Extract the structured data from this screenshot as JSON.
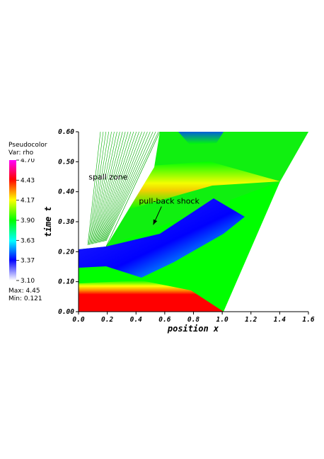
{
  "legend": {
    "title1": "Pseudocolor",
    "title2": "Var: rho",
    "ticks": [
      "4.70",
      "4.43",
      "4.17",
      "3.90",
      "3.63",
      "3.37",
      "3.10"
    ],
    "max_label": "Max:  4.45",
    "min_label": "Min:  0.121",
    "colors": [
      "#ff00ff",
      "#ff0000",
      "#ffff00",
      "#00ff00",
      "#00ffff",
      "#0000ff",
      "#ffffff"
    ]
  },
  "chart_data": {
    "type": "heatmap",
    "xlabel": "position x",
    "ylabel": "time t",
    "xlim": [
      0.0,
      1.6
    ],
    "ylim": [
      0.0,
      0.6
    ],
    "x_ticks": [
      "0.0",
      "0.2",
      "0.4",
      "0.6",
      "0.8",
      "1.0",
      "1.2",
      "1.4",
      "1.6"
    ],
    "y_ticks": [
      "0.00",
      "0.10",
      "0.20",
      "0.30",
      "0.40",
      "0.50",
      "0.60"
    ],
    "annotations": [
      {
        "text": "spall zone",
        "x": 0.07,
        "y": 0.44
      },
      {
        "text": "pull-back shock",
        "x": 0.42,
        "y": 0.36,
        "arrow_to": [
          0.52,
          0.29
        ]
      }
    ]
  }
}
